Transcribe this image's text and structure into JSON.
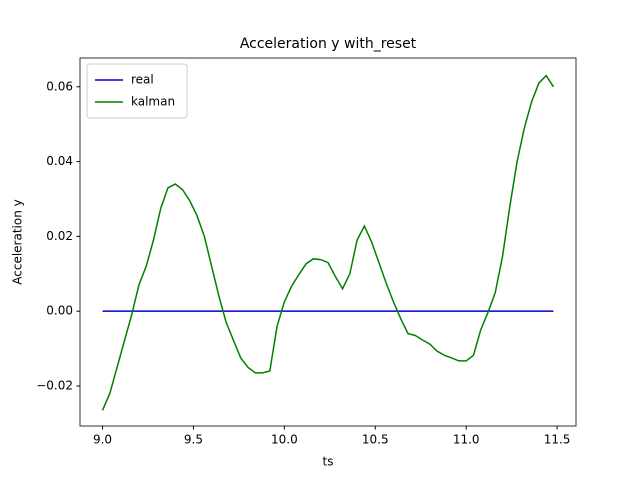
{
  "chart_data": {
    "type": "line",
    "title": "Acceleration y with_reset",
    "x_label": "ts",
    "y_label": "Acceleration y",
    "x": [
      9.0,
      9.04,
      9.08,
      9.12,
      9.16,
      9.2,
      9.24,
      9.28,
      9.32,
      9.36,
      9.4,
      9.44,
      9.48,
      9.52,
      9.56,
      9.6,
      9.64,
      9.68,
      9.72,
      9.76,
      9.8,
      9.84,
      9.88,
      9.92,
      9.96,
      10.0,
      10.04,
      10.08,
      10.12,
      10.16,
      10.2,
      10.24,
      10.28,
      10.32,
      10.36,
      10.4,
      10.44,
      10.48,
      10.52,
      10.56,
      10.6,
      10.64,
      10.68,
      10.72,
      10.76,
      10.8,
      10.84,
      10.88,
      10.92,
      10.96,
      11.0,
      11.04,
      11.08,
      11.12,
      11.16,
      11.2,
      11.24,
      11.28,
      11.32,
      11.36,
      11.4,
      11.44,
      11.48
    ],
    "series": [
      {
        "name": "real",
        "color": "#0000cd",
        "values": [
          0,
          0,
          0,
          0,
          0,
          0,
          0,
          0,
          0,
          0,
          0,
          0,
          0,
          0,
          0,
          0,
          0,
          0,
          0,
          0,
          0,
          0,
          0,
          0,
          0,
          0,
          0,
          0,
          0,
          0,
          0,
          0,
          0,
          0,
          0,
          0,
          0,
          0,
          0,
          0,
          0,
          0,
          0,
          0,
          0,
          0,
          0,
          0,
          0,
          0,
          0,
          0,
          0,
          0,
          0,
          0,
          0,
          0,
          0,
          0,
          0,
          0,
          0
        ]
      },
      {
        "name": "kalman",
        "color": "#008000",
        "values": [
          -0.0265,
          -0.022,
          -0.015,
          -0.008,
          -0.001,
          0.007,
          0.012,
          0.019,
          0.0275,
          0.033,
          0.034,
          0.0325,
          0.0295,
          0.0255,
          0.02,
          0.012,
          0.004,
          -0.003,
          -0.0078,
          -0.0125,
          -0.015,
          -0.0165,
          -0.0165,
          -0.016,
          -0.004,
          0.0025,
          0.0067,
          0.0098,
          0.0127,
          0.014,
          0.0138,
          0.013,
          0.0093,
          0.006,
          0.01,
          0.019,
          0.0228,
          0.0185,
          0.013,
          0.0075,
          0.0025,
          -0.002,
          -0.006,
          -0.0065,
          -0.0077,
          -0.0088,
          -0.0107,
          -0.0118,
          -0.0125,
          -0.0133,
          -0.0133,
          -0.0118,
          -0.005,
          -0.0003,
          0.005,
          0.0147,
          0.028,
          0.04,
          0.049,
          0.056,
          0.061,
          0.063,
          0.06
        ]
      }
    ],
    "xlim": [
      8.876,
      11.604
    ],
    "ylim": [
      -0.0307,
      0.0677
    ],
    "xticks": [
      {
        "value": 9,
        "label": "9.0"
      },
      9.5,
      {
        "value": 10,
        "label": "10.0"
      },
      10.5,
      {
        "value": 11,
        "label": "11.0"
      },
      11.5
    ],
    "yticks": [
      {
        "value": -0.02,
        "label": "−0.02"
      },
      {
        "value": 0,
        "label": "0.00"
      },
      0.02,
      0.04,
      0.06
    ],
    "grid": false,
    "legend": "upper left"
  }
}
